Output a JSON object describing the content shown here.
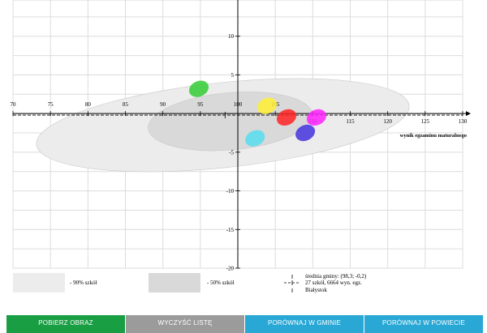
{
  "chart_data": {
    "type": "scatter",
    "xlabel": "wynik egzaminu maturalnego",
    "ylabel": "",
    "xlim": [
      70,
      130
    ],
    "ylim": [
      -20,
      15
    ],
    "x_ticks": [
      70,
      75,
      80,
      85,
      90,
      95,
      100,
      105,
      110,
      115,
      120,
      125,
      130
    ],
    "y_ticks": [
      -20,
      -15,
      -10,
      -5,
      5,
      10,
      15
    ],
    "grid": true,
    "mean_line_y": -0.2,
    "regions": [
      {
        "label": "- 90% szkół",
        "cx": 98,
        "cy": -1.5,
        "rx": 25,
        "ry": 5.5,
        "angle": -6,
        "color": "#ececec"
      },
      {
        "label": "- 50% szkół",
        "cx": 99,
        "cy": -1.0,
        "rx": 11,
        "ry": 3.7,
        "angle": -5,
        "color": "#d9d9d9"
      }
    ],
    "points": [
      {
        "x": 94.8,
        "y": 3.2,
        "color": "#33cc33"
      },
      {
        "x": 103.9,
        "y": 1.0,
        "color": "#ffee33"
      },
      {
        "x": 106.5,
        "y": -0.5,
        "color": "#ff2222"
      },
      {
        "x": 110.5,
        "y": -0.5,
        "color": "#ff22ff"
      },
      {
        "x": 109.0,
        "y": -2.5,
        "color": "#4433dd"
      },
      {
        "x": 102.3,
        "y": -3.2,
        "color": "#55ddee"
      }
    ],
    "legend": {
      "lines": [
        "średnia gminy: (98,3; -0,2)",
        "27 szkół, 6664 wyn. egz.",
        "Białystok"
      ]
    }
  },
  "legend": {
    "p90": "- 90% szkół",
    "p50": "- 50% szkół",
    "line1": "średnia gminy: (98,3; -0,2)",
    "line2": "27 szkół, 6664 wyn. egz.",
    "line3": "Białystok"
  },
  "buttons": [
    {
      "label": "POBIERZ OBRAZ",
      "color": "#1a9e44"
    },
    {
      "label": "WYCZYŚĆ LISTĘ",
      "color": "#9b9b9b"
    },
    {
      "label": "PORÓWNAJ W GMINIE",
      "color": "#29a8d6"
    },
    {
      "label": "PORÓWNAJ W POWIECIE",
      "color": "#29a8d6"
    }
  ]
}
